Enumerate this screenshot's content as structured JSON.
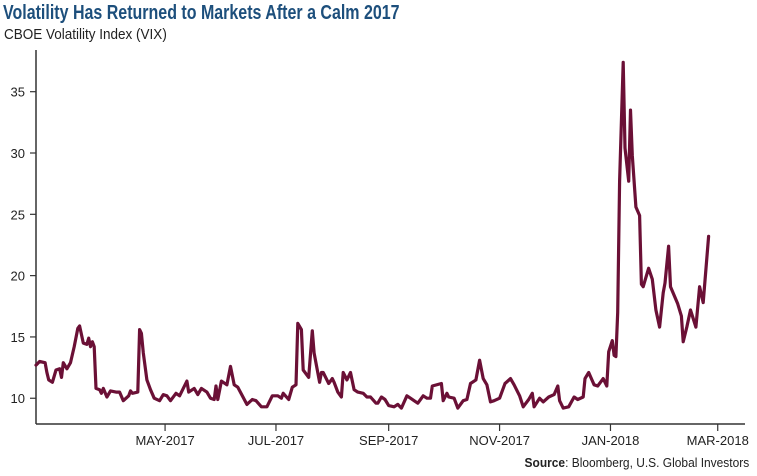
{
  "title": "Volatility Has Returned to Markets After a Calm 2017",
  "subtitle": "CBOE Volatility Index (VIX)",
  "source": {
    "label": "Source",
    "text": ": Bloomberg, U.S. Global Investors"
  },
  "chart_data": {
    "type": "line",
    "title": "Volatility Has Returned to Markets After a Calm 2017",
    "subtitle": "CBOE Volatility Index (VIX)",
    "xlabel": "",
    "ylabel": "",
    "xlim": [
      "2017-02-19",
      "2018-03-16"
    ],
    "ylim": [
      7.9,
      38.4
    ],
    "grid": false,
    "legend": "none",
    "line_color": "#6b1036",
    "title_color": "#1d4f7c",
    "x_ticks": [
      {
        "date": "2017-05-01",
        "label": "MAY-2017"
      },
      {
        "date": "2017-07-01",
        "label": "JUL-2017"
      },
      {
        "date": "2017-09-01",
        "label": "SEP-2017"
      },
      {
        "date": "2017-11-01",
        "label": "NOV-2017"
      },
      {
        "date": "2018-01-01",
        "label": "JAN-2018"
      },
      {
        "date": "2018-03-01",
        "label": "MAR-2018"
      }
    ],
    "y_ticks": [
      10,
      15,
      20,
      25,
      30,
      35
    ],
    "series": [
      {
        "points": [
          [
            "2017-02-19",
            12.7
          ],
          [
            "2017-02-21",
            13.0
          ],
          [
            "2017-02-24",
            12.9
          ],
          [
            "2017-02-25",
            12.1
          ],
          [
            "2017-02-26",
            11.5
          ],
          [
            "2017-02-28",
            11.3
          ],
          [
            "2017-03-02",
            12.3
          ],
          [
            "2017-03-04",
            12.4
          ],
          [
            "2017-03-05",
            11.7
          ],
          [
            "2017-03-06",
            12.9
          ],
          [
            "2017-03-08",
            12.4
          ],
          [
            "2017-03-10",
            12.9
          ],
          [
            "2017-03-12",
            14.2
          ],
          [
            "2017-03-14",
            15.7
          ],
          [
            "2017-03-15",
            15.9
          ],
          [
            "2017-03-17",
            14.5
          ],
          [
            "2017-03-19",
            14.4
          ],
          [
            "2017-03-20",
            14.9
          ],
          [
            "2017-03-21",
            14.2
          ],
          [
            "2017-03-22",
            14.6
          ],
          [
            "2017-03-23",
            14.2
          ],
          [
            "2017-03-24",
            10.8
          ],
          [
            "2017-03-26",
            10.7
          ],
          [
            "2017-03-27",
            10.4
          ],
          [
            "2017-03-28",
            10.8
          ],
          [
            "2017-03-30",
            10.1
          ],
          [
            "2017-04-01",
            10.6
          ],
          [
            "2017-04-04",
            10.5
          ],
          [
            "2017-04-06",
            10.5
          ],
          [
            "2017-04-08",
            9.8
          ],
          [
            "2017-04-11",
            10.2
          ],
          [
            "2017-04-12",
            10.6
          ],
          [
            "2017-04-13",
            10.4
          ],
          [
            "2017-04-16",
            10.5
          ],
          [
            "2017-04-17",
            15.6
          ],
          [
            "2017-04-18",
            15.3
          ],
          [
            "2017-04-19",
            13.7
          ],
          [
            "2017-04-21",
            11.5
          ],
          [
            "2017-04-23",
            10.7
          ],
          [
            "2017-04-25",
            10.0
          ],
          [
            "2017-04-28",
            9.8
          ],
          [
            "2017-04-30",
            10.3
          ],
          [
            "2017-05-02",
            10.2
          ],
          [
            "2017-05-04",
            9.8
          ],
          [
            "2017-05-07",
            10.4
          ],
          [
            "2017-05-09",
            10.2
          ],
          [
            "2017-05-13",
            11.4
          ],
          [
            "2017-05-14",
            10.5
          ],
          [
            "2017-05-17",
            10.8
          ],
          [
            "2017-05-19",
            10.3
          ],
          [
            "2017-05-21",
            10.8
          ],
          [
            "2017-05-24",
            10.5
          ],
          [
            "2017-05-26",
            10.0
          ],
          [
            "2017-05-28",
            9.9
          ],
          [
            "2017-05-29",
            11.0
          ],
          [
            "2017-05-30",
            9.9
          ],
          [
            "2017-06-01",
            11.4
          ],
          [
            "2017-06-04",
            11.1
          ],
          [
            "2017-06-06",
            12.6
          ],
          [
            "2017-06-08",
            11.1
          ],
          [
            "2017-06-10",
            10.9
          ],
          [
            "2017-06-15",
            9.5
          ],
          [
            "2017-06-18",
            9.9
          ],
          [
            "2017-06-20",
            9.8
          ],
          [
            "2017-06-23",
            9.3
          ],
          [
            "2017-06-26",
            9.3
          ],
          [
            "2017-06-29",
            10.2
          ],
          [
            "2017-07-02",
            10.2
          ],
          [
            "2017-07-04",
            10.0
          ],
          [
            "2017-07-05",
            10.4
          ],
          [
            "2017-07-08",
            9.9
          ],
          [
            "2017-07-10",
            10.9
          ],
          [
            "2017-07-12",
            11.1
          ],
          [
            "2017-07-13",
            16.1
          ],
          [
            "2017-07-15",
            15.6
          ],
          [
            "2017-07-16",
            12.3
          ],
          [
            "2017-07-19",
            11.7
          ],
          [
            "2017-07-21",
            15.5
          ],
          [
            "2017-07-22",
            13.7
          ],
          [
            "2017-07-25",
            11.3
          ],
          [
            "2017-07-26",
            12.1
          ],
          [
            "2017-07-27",
            12.1
          ],
          [
            "2017-07-30",
            11.2
          ],
          [
            "2017-08-01",
            11.6
          ],
          [
            "2017-08-02",
            11.3
          ],
          [
            "2017-08-04",
            10.5
          ],
          [
            "2017-08-06",
            10.1
          ],
          [
            "2017-08-07",
            12.1
          ],
          [
            "2017-08-09",
            11.5
          ],
          [
            "2017-08-11",
            12.1
          ],
          [
            "2017-08-13",
            10.7
          ],
          [
            "2017-08-15",
            10.5
          ],
          [
            "2017-08-18",
            10.4
          ],
          [
            "2017-08-20",
            10.1
          ],
          [
            "2017-08-22",
            10.1
          ],
          [
            "2017-08-25",
            9.6
          ],
          [
            "2017-08-26",
            9.6
          ],
          [
            "2017-08-28",
            10.1
          ],
          [
            "2017-08-30",
            9.9
          ],
          [
            "2017-09-01",
            9.4
          ],
          [
            "2017-09-04",
            9.3
          ],
          [
            "2017-09-06",
            9.5
          ],
          [
            "2017-09-08",
            9.2
          ],
          [
            "2017-09-11",
            10.2
          ],
          [
            "2017-09-13",
            10.0
          ],
          [
            "2017-09-15",
            9.8
          ],
          [
            "2017-09-17",
            9.6
          ],
          [
            "2017-09-20",
            10.2
          ],
          [
            "2017-09-22",
            10.0
          ],
          [
            "2017-09-24",
            10.0
          ],
          [
            "2017-09-25",
            11.0
          ],
          [
            "2017-09-30",
            11.2
          ],
          [
            "2017-10-01",
            9.8
          ],
          [
            "2017-10-03",
            10.4
          ],
          [
            "2017-10-04",
            10.1
          ],
          [
            "2017-10-07",
            10.0
          ],
          [
            "2017-10-09",
            9.2
          ],
          [
            "2017-10-12",
            9.8
          ],
          [
            "2017-10-14",
            9.9
          ],
          [
            "2017-10-16",
            11.2
          ],
          [
            "2017-10-19",
            11.5
          ],
          [
            "2017-10-21",
            13.1
          ],
          [
            "2017-10-23",
            11.6
          ],
          [
            "2017-10-25",
            11.1
          ],
          [
            "2017-10-27",
            9.7
          ],
          [
            "2017-10-29",
            9.8
          ],
          [
            "2017-11-01",
            10.0
          ],
          [
            "2017-11-04",
            11.2
          ],
          [
            "2017-11-07",
            11.6
          ],
          [
            "2017-11-09",
            11.1
          ],
          [
            "2017-11-12",
            10.2
          ],
          [
            "2017-11-14",
            9.3
          ],
          [
            "2017-11-17",
            9.9
          ],
          [
            "2017-11-19",
            10.4
          ],
          [
            "2017-11-20",
            9.3
          ],
          [
            "2017-11-23",
            10.0
          ],
          [
            "2017-11-25",
            9.7
          ],
          [
            "2017-11-28",
            10.1
          ],
          [
            "2017-12-01",
            10.3
          ],
          [
            "2017-12-03",
            11.0
          ],
          [
            "2017-12-04",
            9.8
          ],
          [
            "2017-12-06",
            9.2
          ],
          [
            "2017-12-09",
            9.3
          ],
          [
            "2017-12-12",
            10.1
          ],
          [
            "2017-12-14",
            9.9
          ],
          [
            "2017-12-17",
            10.1
          ],
          [
            "2017-12-18",
            11.6
          ],
          [
            "2017-12-20",
            12.1
          ],
          [
            "2017-12-23",
            11.1
          ],
          [
            "2017-12-25",
            11.0
          ],
          [
            "2017-12-28",
            11.6
          ],
          [
            "2017-12-30",
            11.0
          ],
          [
            "2017-12-31",
            13.8
          ],
          [
            "2018-01-02",
            14.7
          ],
          [
            "2018-01-03",
            13.5
          ],
          [
            "2018-01-04",
            13.4
          ],
          [
            "2018-01-05",
            17.0
          ],
          [
            "2018-01-06",
            27.7
          ],
          [
            "2018-01-08",
            37.4
          ],
          [
            "2018-01-09",
            30.4
          ],
          [
            "2018-01-11",
            27.7
          ],
          [
            "2018-01-12",
            33.5
          ],
          [
            "2018-01-13",
            29.8
          ],
          [
            "2018-01-15",
            25.6
          ],
          [
            "2018-01-17",
            24.9
          ],
          [
            "2018-01-18",
            19.3
          ],
          [
            "2018-01-19",
            19.1
          ],
          [
            "2018-01-22",
            20.6
          ],
          [
            "2018-01-24",
            19.7
          ],
          [
            "2018-01-26",
            17.2
          ],
          [
            "2018-01-28",
            15.8
          ],
          [
            "2018-01-30",
            18.6
          ],
          [
            "2018-01-31",
            19.4
          ],
          [
            "2018-02-02",
            22.4
          ],
          [
            "2018-02-03",
            19.1
          ],
          [
            "2018-02-07",
            17.7
          ],
          [
            "2018-02-09",
            16.7
          ],
          [
            "2018-02-10",
            14.6
          ],
          [
            "2018-02-12",
            15.8
          ],
          [
            "2018-02-14",
            17.2
          ],
          [
            "2018-02-17",
            15.8
          ],
          [
            "2018-02-19",
            19.1
          ],
          [
            "2018-02-21",
            17.8
          ],
          [
            "2018-02-24",
            23.2
          ]
        ]
      }
    ]
  }
}
